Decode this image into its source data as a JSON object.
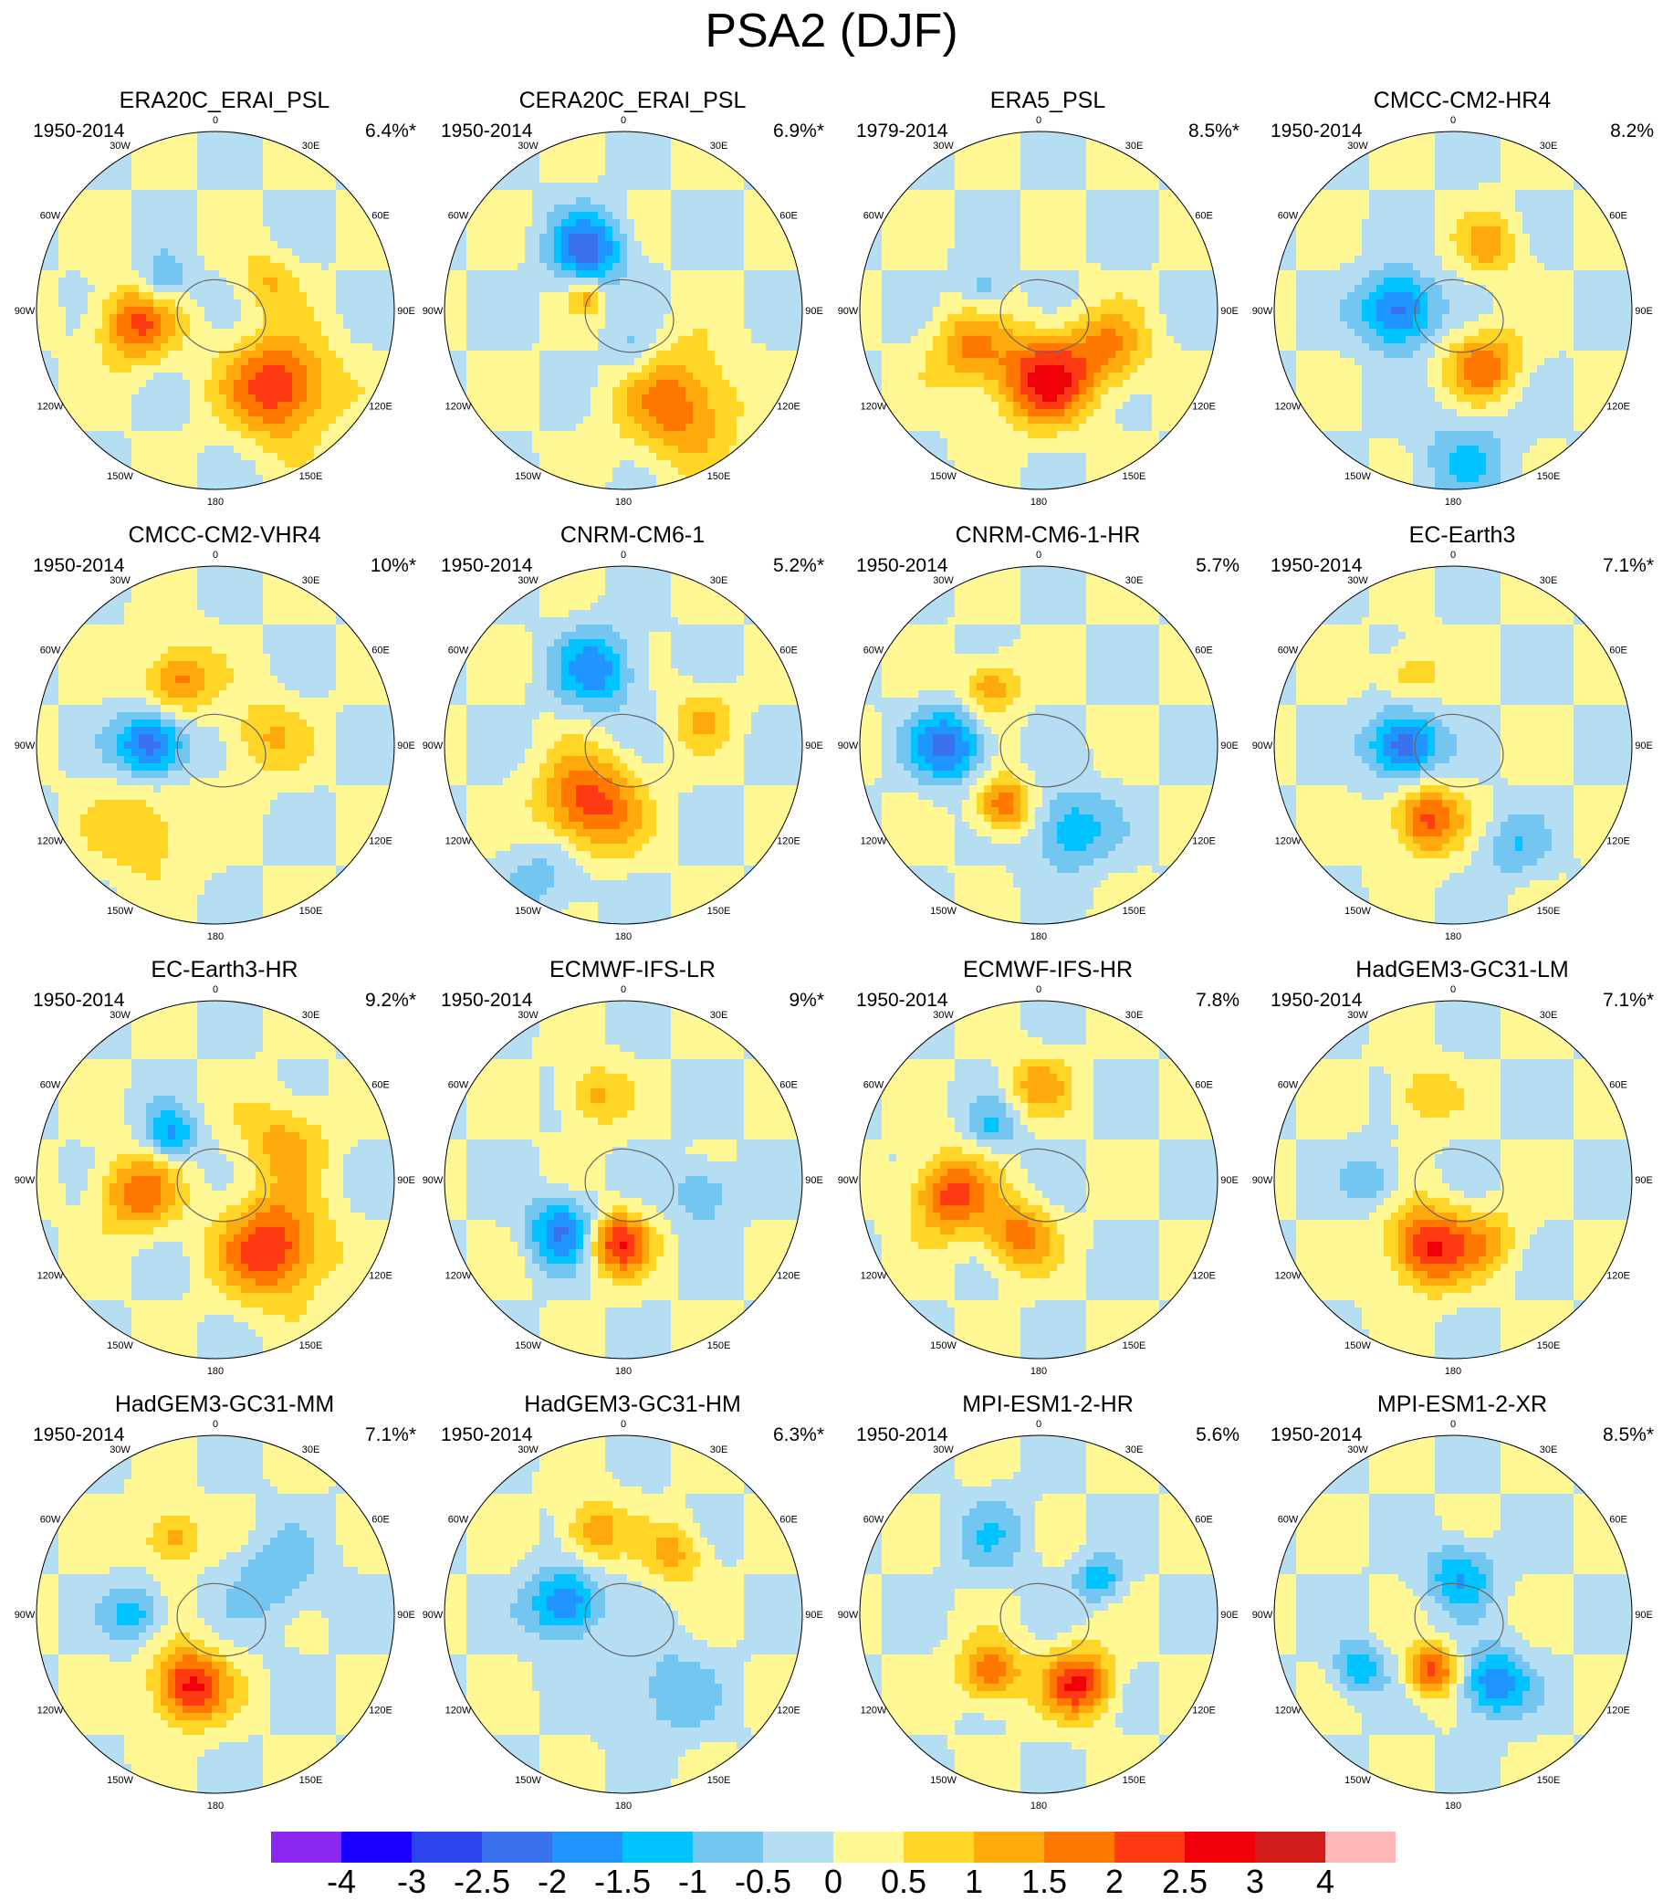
{
  "title": "PSA2 (DJF)",
  "longitude_labels": [
    "0",
    "30E",
    "60E",
    "90E",
    "120E",
    "150E",
    "180",
    "150W",
    "120W",
    "90W",
    "60W",
    "30W"
  ],
  "panels": [
    {
      "title": "ERA20C_ERAI_PSL",
      "period": "1950-2014",
      "variance": "6.4%*",
      "features": [
        {
          "lon": -100,
          "colat": 40,
          "amp": 2.0,
          "spread": 14
        },
        {
          "lon": 140,
          "colat": 50,
          "amp": 2.5,
          "spread": 18
        },
        {
          "lon": -60,
          "colat": 30,
          "amp": -1.2,
          "spread": 9
        },
        {
          "lon": 60,
          "colat": 30,
          "amp": 1.0,
          "spread": 10
        }
      ]
    },
    {
      "title": "CERA20C_ERAI_PSL",
      "period": "1950-2014",
      "variance": "6.9%*",
      "features": [
        {
          "lon": -30,
          "colat": 36,
          "amp": -2.2,
          "spread": 13
        },
        {
          "lon": 150,
          "colat": 55,
          "amp": 1.8,
          "spread": 20
        },
        {
          "lon": 170,
          "colat": 22,
          "amp": -0.8,
          "spread": 9
        },
        {
          "lon": -70,
          "colat": 20,
          "amp": 1.2,
          "spread": 6
        }
      ]
    },
    {
      "title": "ERA5_PSL",
      "period": "1979-2014",
      "variance": "8.5%*",
      "features": [
        {
          "lon": 175,
          "colat": 35,
          "amp": 2.6,
          "spread": 16
        },
        {
          "lon": 120,
          "colat": 40,
          "amp": 1.5,
          "spread": 14
        },
        {
          "lon": -120,
          "colat": 40,
          "amp": 1.5,
          "spread": 14
        },
        {
          "lon": -70,
          "colat": 30,
          "amp": -0.9,
          "spread": 8
        }
      ]
    },
    {
      "title": "CMCC-CM2-HR4",
      "period": "1950-2014",
      "variance": "8.2%",
      "features": [
        {
          "lon": -90,
          "colat": 28,
          "amp": -2.4,
          "spread": 13
        },
        {
          "lon": 150,
          "colat": 32,
          "amp": 1.8,
          "spread": 13
        },
        {
          "lon": 30,
          "colat": 38,
          "amp": 1.2,
          "spread": 11
        },
        {
          "lon": 175,
          "colat": 75,
          "amp": -0.9,
          "spread": 18
        }
      ]
    },
    {
      "title": "CMCC-CM2-VHR4",
      "period": "1950-2014",
      "variance": "10%*",
      "features": [
        {
          "lon": -90,
          "colat": 32,
          "amp": -2.6,
          "spread": 12
        },
        {
          "lon": -30,
          "colat": 38,
          "amp": 1.8,
          "spread": 12
        },
        {
          "lon": 80,
          "colat": 25,
          "amp": 1.0,
          "spread": 14
        },
        {
          "lon": -140,
          "colat": 55,
          "amp": 1.0,
          "spread": 18
        }
      ]
    },
    {
      "title": "CNRM-CM6-1",
      "period": "1950-2014",
      "variance": "5.2%*",
      "features": [
        {
          "lon": -150,
          "colat": 35,
          "amp": 2.4,
          "spread": 17
        },
        {
          "lon": -20,
          "colat": 40,
          "amp": -1.8,
          "spread": 14
        },
        {
          "lon": 70,
          "colat": 42,
          "amp": 1.0,
          "spread": 11
        },
        {
          "lon": -150,
          "colat": 75,
          "amp": -0.8,
          "spread": 16
        }
      ]
    },
    {
      "title": "CNRM-CM6-1-HR",
      "period": "1950-2014",
      "variance": "5.7%",
      "features": [
        {
          "lon": -90,
          "colat": 45,
          "amp": -2.2,
          "spread": 13
        },
        {
          "lon": -40,
          "colat": 38,
          "amp": 1.5,
          "spread": 10
        },
        {
          "lon": -150,
          "colat": 35,
          "amp": 2.0,
          "spread": 10
        },
        {
          "lon": 160,
          "colat": 45,
          "amp": -1.5,
          "spread": 14
        }
      ]
    },
    {
      "title": "EC-Earth3",
      "period": "1950-2014",
      "variance": "7.1%*",
      "features": [
        {
          "lon": -90,
          "colat": 25,
          "amp": -2.6,
          "spread": 12
        },
        {
          "lon": -160,
          "colat": 40,
          "amp": 2.2,
          "spread": 12
        },
        {
          "lon": -30,
          "colat": 42,
          "amp": 1.0,
          "spread": 10
        },
        {
          "lon": 150,
          "colat": 60,
          "amp": -0.9,
          "spread": 12
        }
      ]
    },
    {
      "title": "EC-Earth3-HR",
      "period": "1950-2014",
      "variance": "9.2%*",
      "features": [
        {
          "lon": 140,
          "colat": 45,
          "amp": 2.5,
          "spread": 18
        },
        {
          "lon": -100,
          "colat": 40,
          "amp": 1.8,
          "spread": 14
        },
        {
          "lon": -45,
          "colat": 32,
          "amp": -1.6,
          "spread": 9
        },
        {
          "lon": 60,
          "colat": 40,
          "amp": 1.2,
          "spread": 15
        }
      ]
    },
    {
      "title": "ECMWF-IFS-LR",
      "period": "1950-2014",
      "variance": "9%*",
      "features": [
        {
          "lon": -130,
          "colat": 40,
          "amp": -2.0,
          "spread": 12
        },
        {
          "lon": -175,
          "colat": 32,
          "amp": 2.5,
          "spread": 11
        },
        {
          "lon": -20,
          "colat": 45,
          "amp": 1.2,
          "spread": 11
        },
        {
          "lon": 100,
          "colat": 40,
          "amp": -1.2,
          "spread": 10
        }
      ]
    },
    {
      "title": "ECMWF-IFS-HR",
      "period": "1950-2014",
      "variance": "7.8%",
      "features": [
        {
          "lon": -100,
          "colat": 45,
          "amp": 2.2,
          "spread": 14
        },
        {
          "lon": -160,
          "colat": 30,
          "amp": 1.8,
          "spread": 12
        },
        {
          "lon": 0,
          "colat": 48,
          "amp": 1.2,
          "spread": 11
        },
        {
          "lon": -40,
          "colat": 35,
          "amp": -1.0,
          "spread": 9
        }
      ]
    },
    {
      "title": "HadGEM3-GC31-LM",
      "period": "1950-2014",
      "variance": "7.1%*",
      "features": [
        {
          "lon": -160,
          "colat": 36,
          "amp": 2.6,
          "spread": 14
        },
        {
          "lon": 150,
          "colat": 35,
          "amp": 1.0,
          "spread": 12
        },
        {
          "lon": -20,
          "colat": 45,
          "amp": 1.0,
          "spread": 11
        },
        {
          "lon": -90,
          "colat": 40,
          "amp": -0.9,
          "spread": 10
        }
      ]
    },
    {
      "title": "HadGEM3-GC31-MM",
      "period": "1950-2014",
      "variance": "7.1%*",
      "features": [
        {
          "lon": -160,
          "colat": 38,
          "amp": 2.7,
          "spread": 13
        },
        {
          "lon": -90,
          "colat": 40,
          "amp": -1.3,
          "spread": 10
        },
        {
          "lon": -30,
          "colat": 45,
          "amp": 1.4,
          "spread": 10
        },
        {
          "lon": 60,
          "colat": 35,
          "amp": -0.9,
          "spread": 16
        }
      ]
    },
    {
      "title": "HadGEM3-GC31-HM",
      "period": "1950-2014",
      "variance": "6.3%*",
      "features": [
        {
          "lon": -80,
          "colat": 30,
          "amp": -2.2,
          "spread": 12
        },
        {
          "lon": -20,
          "colat": 45,
          "amp": 1.4,
          "spread": 11
        },
        {
          "lon": 40,
          "colat": 40,
          "amp": 1.2,
          "spread": 11
        },
        {
          "lon": 150,
          "colat": 45,
          "amp": -0.9,
          "spread": 16
        }
      ]
    },
    {
      "title": "MPI-ESM1-2-HR",
      "period": "1950-2014",
      "variance": "5.6%",
      "features": [
        {
          "lon": 150,
          "colat": 40,
          "amp": 2.5,
          "spread": 12
        },
        {
          "lon": -140,
          "colat": 38,
          "amp": 2.0,
          "spread": 11
        },
        {
          "lon": 60,
          "colat": 35,
          "amp": -1.5,
          "spread": 8
        },
        {
          "lon": -30,
          "colat": 45,
          "amp": -0.8,
          "spread": 14
        }
      ]
    },
    {
      "title": "MPI-ESM1-2-XR",
      "period": "1950-2014",
      "variance": "8.5%*",
      "features": [
        {
          "lon": 10,
          "colat": 20,
          "amp": -1.5,
          "spread": 12
        },
        {
          "lon": 150,
          "colat": 40,
          "amp": -2.0,
          "spread": 12
        },
        {
          "lon": -160,
          "colat": 30,
          "amp": 2.2,
          "spread": 9
        },
        {
          "lon": -120,
          "colat": 55,
          "amp": -1.5,
          "spread": 9
        }
      ]
    }
  ],
  "colorbar": {
    "labels": [
      "-4",
      "-3",
      "-2.5",
      "-2",
      "-1.5",
      "-1",
      "-0.5",
      "0",
      "0.5",
      "1",
      "1.5",
      "2",
      "2.5",
      "3",
      "4"
    ],
    "levels": [
      -4,
      -3,
      -2.5,
      -2,
      -1.5,
      -1,
      -0.5,
      0,
      0.5,
      1,
      1.5,
      2,
      2.5,
      3,
      4
    ],
    "colors": [
      "#8a27f0",
      "#1a00ff",
      "#2c44ec",
      "#3a71ee",
      "#2094ff",
      "#00c3ff",
      "#73c6f0",
      "#b6def3",
      "#fff894",
      "#ffd527",
      "#ffaa0c",
      "#ff7800",
      "#ff3b13",
      "#f00008",
      "#d21c1c",
      "#ffb6b6"
    ]
  }
}
